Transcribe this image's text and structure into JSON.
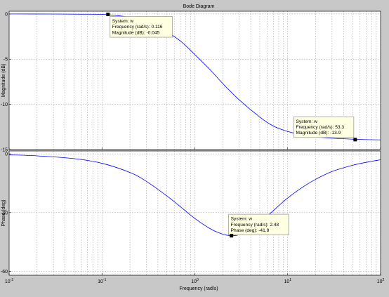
{
  "chart_data": {
    "type": "line",
    "title": "Bode Diagram",
    "xlabel": "Frequency  (rad/s)",
    "xscale": "log",
    "xlim": [
      0.01,
      100
    ],
    "x_ticks": [
      {
        "base": "10",
        "exp": "-2",
        "value": 0.01
      },
      {
        "base": "10",
        "exp": "-1",
        "value": 0.1
      },
      {
        "base": "10",
        "exp": "0",
        "value": 1
      },
      {
        "base": "10",
        "exp": "1",
        "value": 10
      },
      {
        "base": "10",
        "exp": "2",
        "value": 100
      }
    ],
    "grid": true,
    "line_color": "#0000ff",
    "background": "#c8c8c8",
    "axes_background": "#ffffff",
    "tip_background": "#ffffe1",
    "panels": [
      {
        "name": "magnitude",
        "ylabel": "Magnitude (dB)",
        "ylim": [
          -15,
          0.3
        ],
        "y_ticks": [
          {
            "value": 0,
            "label": "0"
          },
          {
            "value": -5,
            "label": "-5"
          },
          {
            "value": -10,
            "label": "-10"
          },
          {
            "value": -15,
            "label": "-15"
          }
        ],
        "series": [
          {
            "x": [
              0.01,
              0.03,
              0.06,
              0.1,
              0.15,
              0.2,
              0.3,
              0.5,
              0.7,
              1,
              1.5,
              2,
              3,
              5,
              7,
              10,
              15,
              20,
              30,
              50,
              70,
              100
            ],
            "y": [
              0,
              -0.01,
              -0.03,
              -0.05,
              -0.2,
              -0.4,
              -0.9,
              -2.0,
              -3.0,
              -4.5,
              -6.3,
              -7.7,
              -9.5,
              -11.4,
              -12.4,
              -13.0,
              -13.4,
              -13.6,
              -13.75,
              -13.85,
              -13.9,
              -13.93
            ]
          }
        ],
        "datatips": [
          {
            "x": 0.116,
            "y": -0.045,
            "box_side": "right",
            "lines": [
              "System: w",
              "Frequency (rad/s): 0.116",
              "Magnitude (dB): -0.045"
            ]
          },
          {
            "x": 53.3,
            "y": -13.9,
            "box_side": "left-above",
            "lines": [
              "System: w",
              "Frequency (rad/s): 53.3",
              "Magnitude (dB): -13.9"
            ]
          }
        ]
      },
      {
        "name": "phase",
        "ylabel": "Phase (deg)",
        "ylim": [
          -62,
          1.5
        ],
        "y_ticks": [
          {
            "value": 0,
            "label": "0"
          },
          {
            "value": -30,
            "label": "-30"
          },
          {
            "value": -60,
            "label": "-60"
          }
        ],
        "series": [
          {
            "x": [
              0.01,
              0.02,
              0.05,
              0.1,
              0.2,
              0.3,
              0.5,
              0.7,
              1,
              1.5,
              2,
              2.48,
              3,
              4,
              5,
              7,
              10,
              15,
              20,
              30,
              50,
              70,
              100
            ],
            "y": [
              -0.5,
              -1.0,
              -2.4,
              -4.8,
              -9.5,
              -14,
              -21.5,
              -27,
              -33,
              -38.5,
              -41,
              -41.8,
              -41.3,
              -38.5,
              -35,
              -29,
              -22.5,
              -16.5,
              -13,
              -9,
              -5.8,
              -4.3,
              -3.0
            ]
          }
        ],
        "datatips": [
          {
            "x": 2.48,
            "y": -41.8,
            "box_side": "right-above",
            "lines": [
              "System: w",
              "Frequency (rad/s): 2.48",
              "Phase (deg): -41.8"
            ]
          }
        ]
      }
    ]
  }
}
